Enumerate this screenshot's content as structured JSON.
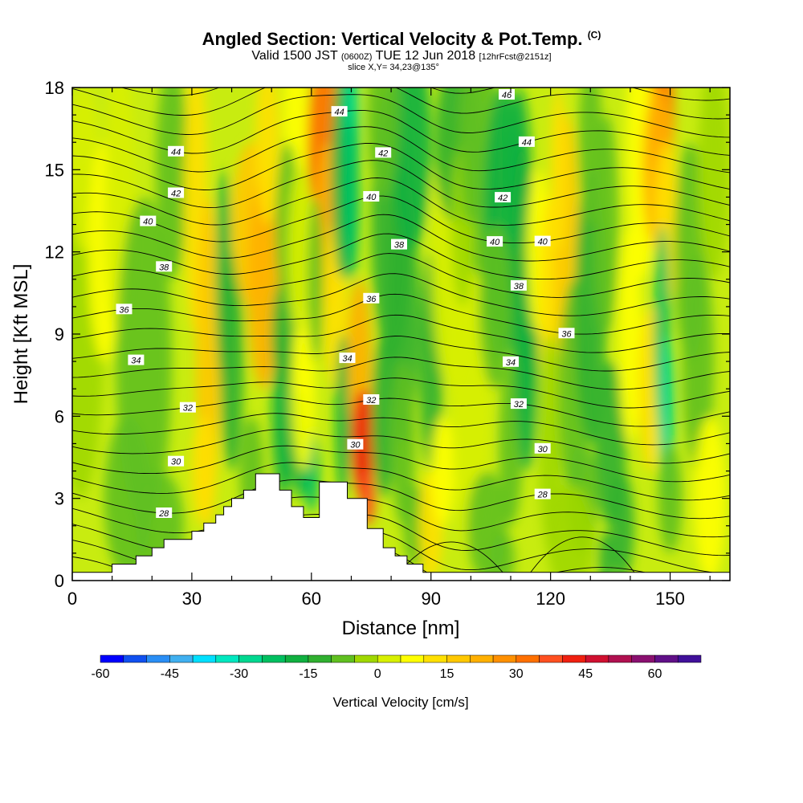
{
  "chart_data": {
    "type": "heatmap",
    "title": "Angled Section: Vertical Velocity & Pot.Temp.",
    "title_mark": "(C)",
    "subtitle_parts": {
      "a": "Valid 1500 JST",
      "b": "(0600Z)",
      "c": "TUE 12 Jun 2018",
      "d": "[12hrFcst@2151z]"
    },
    "slice": "slice X,Y= 34,23@135°",
    "xlabel": "Distance [nm]",
    "ylabel": "Height [Kft MSL]",
    "xlim": [
      0,
      165
    ],
    "ylim": [
      0,
      18
    ],
    "x_ticks": [
      "0",
      "30",
      "60",
      "90",
      "120",
      "150"
    ],
    "y_ticks": [
      "0",
      "3",
      "6",
      "9",
      "12",
      "15",
      "18"
    ],
    "x_tick_values": [
      0,
      30,
      60,
      90,
      120,
      150
    ],
    "y_tick_values": [
      0,
      3,
      6,
      9,
      12,
      15,
      18
    ],
    "colorbar": {
      "label": "Vertical Velocity [cm/s]",
      "tick_labels": [
        "-60",
        "-45",
        "-30",
        "-15",
        "0",
        "15",
        "30",
        "45",
        "60"
      ],
      "tick_values": [
        -60,
        -45,
        -30,
        -15,
        0,
        15,
        30,
        45,
        60
      ],
      "min": -60,
      "max": 70,
      "step": 5,
      "colors": [
        "#0000ff",
        "#1050f0",
        "#2a8ef5",
        "#40b0f0",
        "#00e0ff",
        "#00e8c0",
        "#00d890",
        "#00c060",
        "#10b040",
        "#30b030",
        "#60c020",
        "#a0d800",
        "#d8f000",
        "#ffff00",
        "#ffe000",
        "#ffc800",
        "#ffb000",
        "#ff9000",
        "#ff7000",
        "#ff5020",
        "#f02010",
        "#d01030",
        "#b01050",
        "#8a1070",
        "#601088",
        "#40109a"
      ]
    },
    "series": [
      {
        "name": "Vertical Velocity",
        "note": "filled contours"
      },
      {
        "name": "Pot.Temp.",
        "note": "contour lines"
      }
    ],
    "theta_levels": [
      {
        "value": "28",
        "x": [
          23,
          118
        ]
      },
      {
        "value": "30",
        "x": [
          26,
          71,
          118
        ]
      },
      {
        "value": "32",
        "x": [
          29,
          75,
          112
        ]
      },
      {
        "value": "34",
        "x": [
          16,
          69,
          110
        ]
      },
      {
        "value": "36",
        "x": [
          13,
          75,
          124
        ]
      },
      {
        "value": "38",
        "x": [
          23,
          82,
          112
        ]
      },
      {
        "value": "40",
        "x": [
          19,
          75,
          118,
          106
        ]
      },
      {
        "value": "42",
        "x": [
          26,
          78,
          108
        ]
      },
      {
        "value": "44",
        "x": [
          26,
          67,
          114
        ]
      },
      {
        "value": "46",
        "x": [
          109
        ]
      }
    ],
    "terrain_kft": [
      [
        0,
        0.3
      ],
      [
        10,
        0.3
      ],
      [
        10,
        0.6
      ],
      [
        16,
        0.6
      ],
      [
        16,
        0.9
      ],
      [
        20,
        0.9
      ],
      [
        20,
        1.2
      ],
      [
        23,
        1.2
      ],
      [
        23,
        1.5
      ],
      [
        30,
        1.5
      ],
      [
        30,
        1.8
      ],
      [
        33,
        1.8
      ],
      [
        33,
        2.1
      ],
      [
        36,
        2.1
      ],
      [
        36,
        2.4
      ],
      [
        38,
        2.4
      ],
      [
        38,
        2.7
      ],
      [
        40,
        2.7
      ],
      [
        40,
        3.0
      ],
      [
        43,
        3.0
      ],
      [
        43,
        3.3
      ],
      [
        46,
        3.3
      ],
      [
        46,
        3.9
      ],
      [
        52,
        3.9
      ],
      [
        52,
        3.3
      ],
      [
        55,
        3.3
      ],
      [
        55,
        2.7
      ],
      [
        58,
        2.7
      ],
      [
        58,
        2.3
      ],
      [
        62,
        2.3
      ],
      [
        62,
        3.6
      ],
      [
        69,
        3.6
      ],
      [
        69,
        3.0
      ],
      [
        74,
        3.0
      ],
      [
        74,
        1.9
      ],
      [
        78,
        1.9
      ],
      [
        78,
        1.2
      ],
      [
        81,
        1.2
      ],
      [
        81,
        0.9
      ],
      [
        84,
        0.9
      ],
      [
        84,
        0.6
      ],
      [
        88,
        0.6
      ],
      [
        88,
        0.3
      ],
      [
        165,
        0.3
      ]
    ]
  }
}
